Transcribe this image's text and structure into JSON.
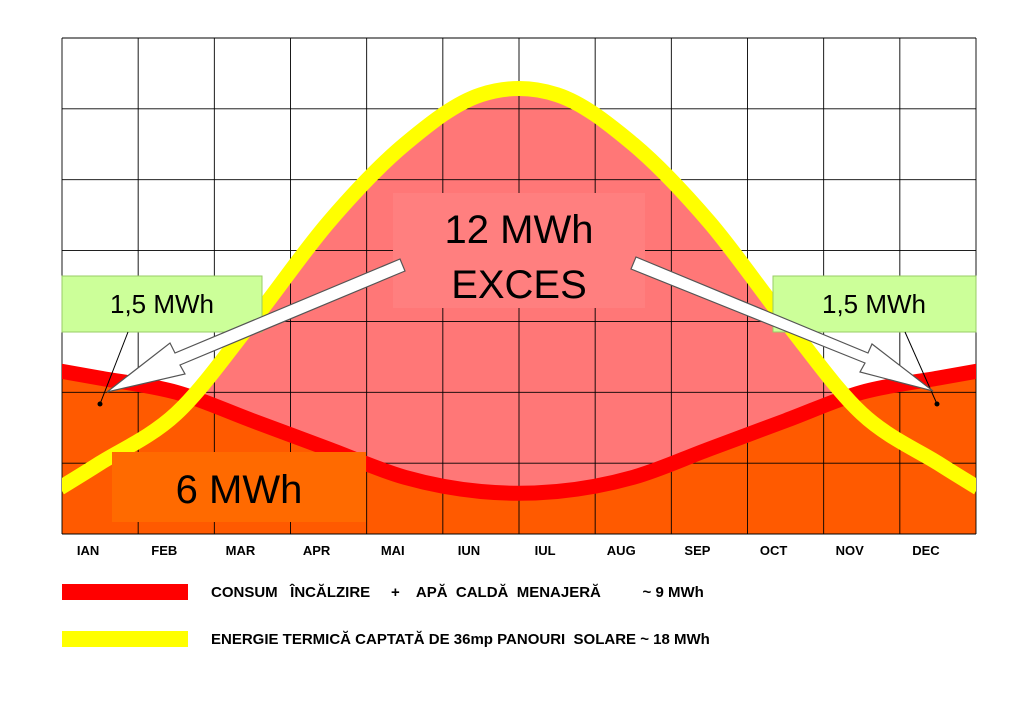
{
  "chart_data": {
    "type": "line",
    "categories": [
      "IAN",
      "FEB",
      "MAR",
      "APR",
      "MAI",
      "IUN",
      "IUL",
      "AUG",
      "SEP",
      "OCT",
      "NOV",
      "DEC"
    ],
    "series": [
      {
        "name": "CONSUM ÎNCĂLZIRE + APĂ CALDĂ MENAJERĂ ~ 9 MWh",
        "color": "#ff0000",
        "fill": "#ff5a00",
        "values": [
          2.2,
          2.0,
          1.6,
          1.2,
          0.8,
          0.6,
          0.6,
          0.8,
          1.2,
          1.6,
          2.0,
          2.2
        ]
      },
      {
        "name": "ENERGIE TERMICĂ CAPTATĂ DE 36mp PANOURI SOLARE ~ 18 MWh",
        "color": "#ffff00",
        "fill": "#ff7777",
        "values": [
          1.0,
          1.7,
          3.0,
          4.4,
          5.5,
          6.2,
          6.2,
          5.5,
          4.4,
          3.0,
          1.7,
          1.0
        ]
      }
    ],
    "ylim": [
      0,
      7
    ],
    "grid": true,
    "annotations": [
      {
        "text_lines": [
          "12 MWh",
          "EXCES"
        ]
      },
      {
        "text_lines": [
          "6 MWh"
        ]
      },
      {
        "text_lines": [
          "1,5 MWh"
        ]
      },
      {
        "text_lines": [
          "1,5 MWh"
        ]
      }
    ],
    "legend": {
      "position": "bottom",
      "items": [
        {
          "color": "#ff0000",
          "label": "CONSUM   ÎNCĂLZIRE     +    APĂ  CALDĂ  MENAJERĂ          ~ 9 MWh"
        },
        {
          "color": "#ffff00",
          "label": "ENERGIE TERMICĂ CAPTATĂ DE 36mp PANOURI  SOLARE ~ 18 MWh"
        }
      ]
    }
  }
}
